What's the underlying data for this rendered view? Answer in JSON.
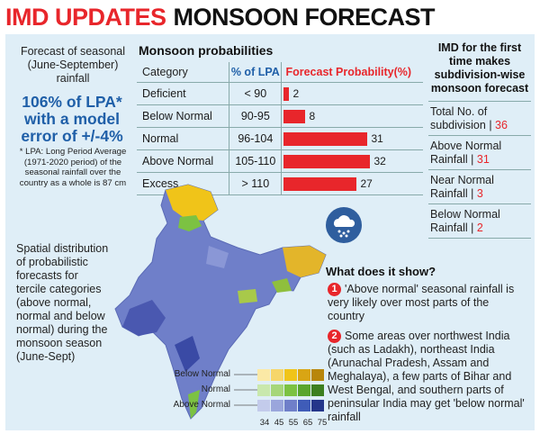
{
  "header": {
    "accent": "IMD UPDATES",
    "rest": "MONSOON FORECAST"
  },
  "left": {
    "intro": "Forecast of seasonal (June-September) rainfall",
    "highlight": "106% of LPA* with a model error of +/-4%",
    "note": "* LPA: Long Period Average (1971-2020 period) of the seasonal rainfall over the country as a whole is 87 cm"
  },
  "probabilities": {
    "title": "Monsoon probabilities",
    "headers": {
      "category": "Category",
      "lpa": "% of LPA",
      "prob": "Forecast Probability(%)"
    }
  },
  "chart_data": {
    "type": "bar",
    "title": "Monsoon probabilities",
    "categories": [
      "Deficient",
      "Below Normal",
      "Normal",
      "Above Normal",
      "Excess"
    ],
    "lpa_ranges": [
      "< 90",
      "90-95",
      "96-104",
      "105-110",
      "> 110"
    ],
    "values": [
      2,
      8,
      31,
      32,
      27
    ],
    "xlabel": "",
    "ylabel": "Forecast Probability(%)",
    "ylim": [
      0,
      32
    ]
  },
  "imd": {
    "title": "IMD for the first time makes subdivision-wise monsoon forecast",
    "items": [
      {
        "label": "Total No. of subdivision",
        "value": "36"
      },
      {
        "label": "Above Normal Rainfall",
        "value": "31"
      },
      {
        "label": "Near Normal Rainfall",
        "value": "3"
      },
      {
        "label": "Below Normal Rainfall",
        "value": "2"
      }
    ]
  },
  "spatial_text": "Spatial distribution of probabilistic forecasts for tercile categories (above normal, normal and below normal) during the monsoon season (June-Sept)",
  "legend": {
    "labels": [
      "Below Normal",
      "Normal",
      "Above Normal"
    ],
    "ticks": [
      "34",
      "45",
      "55",
      "65",
      "75"
    ],
    "colors": [
      "#f0c419",
      "#7cc242",
      "#3f5cb8"
    ]
  },
  "what": {
    "title": "What does it show?",
    "points": [
      {
        "num": "1",
        "text": "'Above normal' seasonal rainfall is very likely over most parts of the country"
      },
      {
        "num": "2",
        "text": "Some areas over northwest India (such as Ladakh), northeast India (Arunachal Pradesh, Assam and Meghalaya), a few parts of Bihar and West Bengal, and southern parts of peninsular India may get 'below normal' rainfall"
      }
    ]
  },
  "colors": {
    "accent": "#e8262b",
    "blue": "#1f5fa8",
    "panel": "#dfeef7"
  }
}
